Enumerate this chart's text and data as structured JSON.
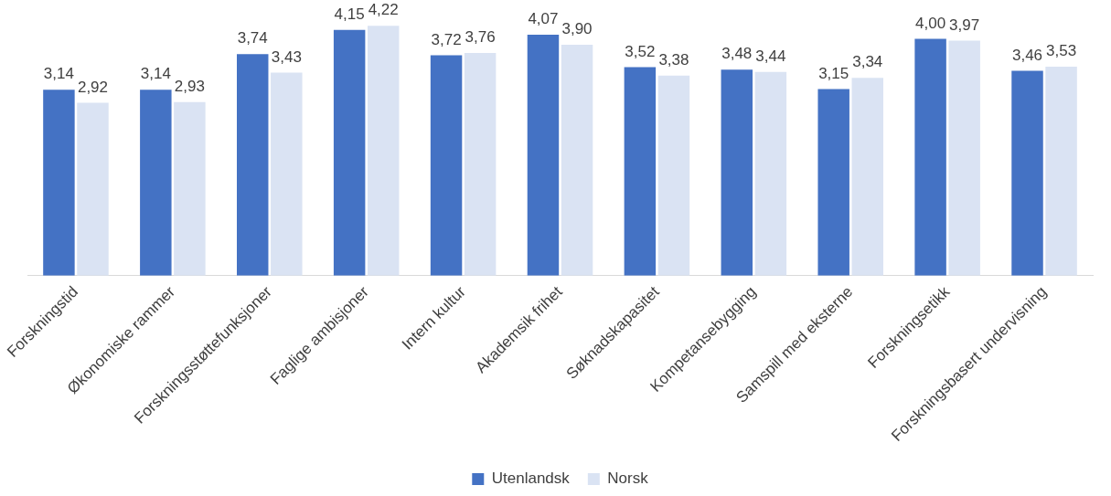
{
  "chart_data": {
    "type": "bar",
    "categories": [
      "Forskningstid",
      "Økonomiske rammer",
      "Forskningsstøttefunksjoner",
      "Faglige ambisjoner",
      "Intern kultur",
      "Akademsik frihet",
      "Søknadskapasitet",
      "Kompetansebygging",
      "Samspill med eksterne",
      "Forskningsetikk",
      "Forskningsbasert undervisning"
    ],
    "series": [
      {
        "name": "Utenlandsk",
        "color": "#4472c4",
        "values": [
          3.14,
          3.14,
          3.74,
          4.15,
          3.72,
          4.07,
          3.52,
          3.48,
          3.15,
          4.0,
          3.46
        ],
        "value_labels": [
          "3,14",
          "3,14",
          "3,74",
          "4,15",
          "3,72",
          "4,07",
          "3,52",
          "3,48",
          "3,15",
          "4,00",
          "3,46"
        ]
      },
      {
        "name": "Norsk",
        "color": "#dae3f3",
        "values": [
          2.92,
          2.93,
          3.43,
          4.22,
          3.76,
          3.9,
          3.38,
          3.44,
          3.34,
          3.97,
          3.53
        ],
        "value_labels": [
          "2,92",
          "2,93",
          "3,43",
          "4,22",
          "3,76",
          "3,90",
          "3,38",
          "3,44",
          "3,34",
          "3,97",
          "3,53"
        ]
      }
    ],
    "tick_labels": "x",
    "grid": false,
    "legend": "bottom"
  }
}
